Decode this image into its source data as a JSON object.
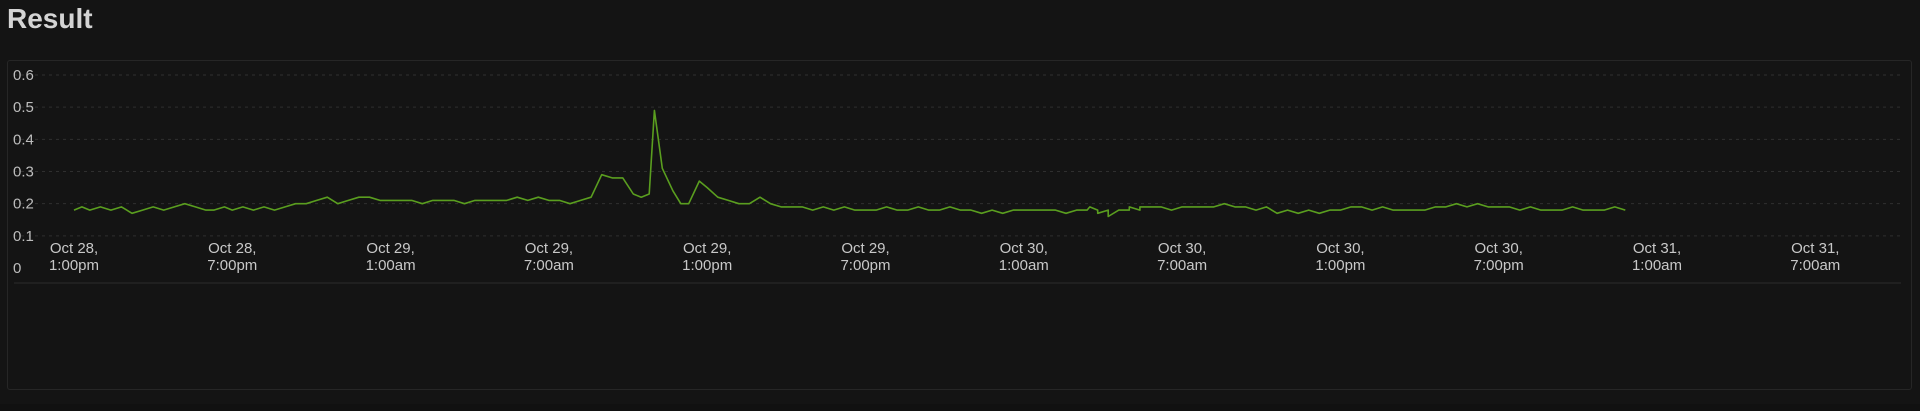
{
  "header": {
    "title": "Result"
  },
  "chart_data": {
    "type": "line",
    "title": "",
    "xlabel": "",
    "ylabel": "",
    "ylim": [
      0,
      0.6
    ],
    "yticks": [
      "0",
      "0.1",
      "0.2",
      "0.3",
      "0.4",
      "0.5",
      "0.6"
    ],
    "grid": true,
    "legend": "none",
    "line_color": "#5a9e1f",
    "x_tick_labels": [
      [
        "Oct 28,",
        "1:00pm"
      ],
      [
        "Oct 28,",
        "7:00pm"
      ],
      [
        "Oct 29,",
        "1:00am"
      ],
      [
        "Oct 29,",
        "7:00am"
      ],
      [
        "Oct 29,",
        "1:00pm"
      ],
      [
        "Oct 29,",
        "7:00pm"
      ],
      [
        "Oct 30,",
        "1:00am"
      ],
      [
        "Oct 30,",
        "7:00am"
      ],
      [
        "Oct 30,",
        "1:00pm"
      ],
      [
        "Oct 30,",
        "7:00pm"
      ],
      [
        "Oct 31,",
        "1:00am"
      ],
      [
        "Oct 31,",
        "7:00am"
      ]
    ],
    "x_range_hours": [
      0,
      70.5
    ],
    "x_unit": "hours since Oct 28, 1:00pm",
    "series": [
      {
        "values": [
          [
            0.0,
            0.18
          ],
          [
            0.3,
            0.19
          ],
          [
            0.6,
            0.18
          ],
          [
            1.0,
            0.19
          ],
          [
            1.4,
            0.18
          ],
          [
            1.8,
            0.19
          ],
          [
            2.2,
            0.17
          ],
          [
            2.6,
            0.18
          ],
          [
            3.0,
            0.19
          ],
          [
            3.4,
            0.18
          ],
          [
            3.8,
            0.19
          ],
          [
            4.2,
            0.2
          ],
          [
            4.6,
            0.19
          ],
          [
            5.0,
            0.18
          ],
          [
            5.3,
            0.18
          ],
          [
            5.7,
            0.19
          ],
          [
            6.0,
            0.18
          ],
          [
            6.4,
            0.19
          ],
          [
            6.8,
            0.18
          ],
          [
            7.2,
            0.19
          ],
          [
            7.6,
            0.18
          ],
          [
            8.0,
            0.19
          ],
          [
            8.4,
            0.2
          ],
          [
            8.8,
            0.2
          ],
          [
            9.2,
            0.21
          ],
          [
            9.6,
            0.22
          ],
          [
            10.0,
            0.2
          ],
          [
            10.4,
            0.21
          ],
          [
            10.8,
            0.22
          ],
          [
            11.2,
            0.22
          ],
          [
            11.6,
            0.21
          ],
          [
            12.0,
            0.21
          ],
          [
            12.4,
            0.21
          ],
          [
            12.8,
            0.21
          ],
          [
            13.2,
            0.2
          ],
          [
            13.6,
            0.21
          ],
          [
            14.0,
            0.21
          ],
          [
            14.4,
            0.21
          ],
          [
            14.8,
            0.2
          ],
          [
            15.2,
            0.21
          ],
          [
            15.6,
            0.21
          ],
          [
            16.0,
            0.21
          ],
          [
            16.4,
            0.21
          ],
          [
            16.8,
            0.22
          ],
          [
            17.2,
            0.21
          ],
          [
            17.6,
            0.22
          ],
          [
            18.0,
            0.21
          ],
          [
            18.4,
            0.21
          ],
          [
            18.8,
            0.2
          ],
          [
            19.2,
            0.21
          ],
          [
            19.6,
            0.22
          ],
          [
            20.0,
            0.29
          ],
          [
            20.4,
            0.28
          ],
          [
            20.8,
            0.28
          ],
          [
            21.2,
            0.23
          ],
          [
            21.5,
            0.22
          ],
          [
            21.8,
            0.23
          ],
          [
            22.0,
            0.49
          ],
          [
            22.3,
            0.31
          ],
          [
            22.7,
            0.24
          ],
          [
            23.0,
            0.2
          ],
          [
            23.3,
            0.2
          ],
          [
            23.7,
            0.27
          ],
          [
            24.0,
            0.25
          ],
          [
            24.4,
            0.22
          ],
          [
            24.8,
            0.21
          ],
          [
            25.2,
            0.2
          ],
          [
            25.6,
            0.2
          ],
          [
            26.0,
            0.22
          ],
          [
            26.4,
            0.2
          ],
          [
            26.8,
            0.19
          ],
          [
            27.2,
            0.19
          ],
          [
            27.6,
            0.19
          ],
          [
            28.0,
            0.18
          ],
          [
            28.4,
            0.19
          ],
          [
            28.8,
            0.18
          ],
          [
            29.2,
            0.19
          ],
          [
            29.6,
            0.18
          ],
          [
            30.0,
            0.18
          ],
          [
            30.4,
            0.18
          ],
          [
            30.8,
            0.19
          ],
          [
            31.2,
            0.18
          ],
          [
            31.6,
            0.18
          ],
          [
            32.0,
            0.19
          ],
          [
            32.4,
            0.18
          ],
          [
            32.8,
            0.18
          ],
          [
            33.2,
            0.19
          ],
          [
            33.6,
            0.18
          ],
          [
            34.0,
            0.18
          ],
          [
            34.4,
            0.17
          ],
          [
            34.8,
            0.18
          ],
          [
            35.2,
            0.17
          ],
          [
            35.6,
            0.18
          ],
          [
            36.0,
            0.18
          ],
          [
            36.4,
            0.18
          ],
          [
            36.8,
            0.18
          ],
          [
            37.2,
            0.18
          ],
          [
            37.6,
            0.17
          ],
          [
            38.0,
            0.18
          ],
          [
            38.4,
            0.18
          ],
          [
            38.8,
            0.18
          ],
          [
            39.2,
            0.18
          ],
          [
            39.6,
            0.18
          ],
          [
            40.0,
            0.18
          ],
          [
            40.4,
            0.18
          ],
          [
            40.8,
            0.19
          ],
          [
            41.2,
            0.19
          ],
          [
            41.6,
            0.18
          ],
          [
            42.0,
            0.19
          ],
          [
            42.4,
            0.19
          ],
          [
            42.8,
            0.19
          ],
          [
            43.2,
            0.19
          ],
          [
            43.6,
            0.2
          ],
          [
            44.0,
            0.19
          ],
          [
            44.4,
            0.19
          ],
          [
            44.8,
            0.18
          ],
          [
            45.2,
            0.19
          ],
          [
            45.6,
            0.17
          ],
          [
            46.0,
            0.18
          ],
          [
            46.4,
            0.17
          ],
          [
            46.8,
            0.18
          ],
          [
            47.2,
            0.17
          ],
          [
            47.6,
            0.18
          ],
          [
            48.0,
            0.18
          ],
          [
            48.4,
            0.19
          ],
          [
            48.8,
            0.19
          ],
          [
            49.2,
            0.18
          ],
          [
            49.6,
            0.19
          ],
          [
            50.0,
            0.18
          ],
          [
            50.4,
            0.18
          ],
          [
            50.8,
            0.18
          ],
          [
            51.2,
            0.18
          ],
          [
            51.6,
            0.19
          ],
          [
            52.0,
            0.19
          ],
          [
            52.4,
            0.2
          ],
          [
            52.8,
            0.19
          ],
          [
            53.2,
            0.2
          ],
          [
            53.6,
            0.19
          ],
          [
            54.0,
            0.19
          ],
          [
            54.4,
            0.19
          ],
          [
            54.8,
            0.18
          ],
          [
            55.2,
            0.19
          ],
          [
            55.6,
            0.18
          ],
          [
            56.0,
            0.18
          ],
          [
            56.4,
            0.18
          ],
          [
            56.8,
            0.19
          ],
          [
            57.2,
            0.18
          ],
          [
            57.6,
            0.18
          ],
          [
            58.0,
            0.18
          ],
          [
            58.4,
            0.19
          ],
          [
            58.8,
            0.18
          ],
          [
            38.5,
            0.19
          ],
          [
            38.8,
            0.17
          ],
          [
            39.2,
            0.16
          ],
          [
            39.6,
            0.18
          ],
          [
            40.0,
            0.19
          ],
          [
            40.4,
            0.19
          ]
        ]
      }
    ]
  }
}
